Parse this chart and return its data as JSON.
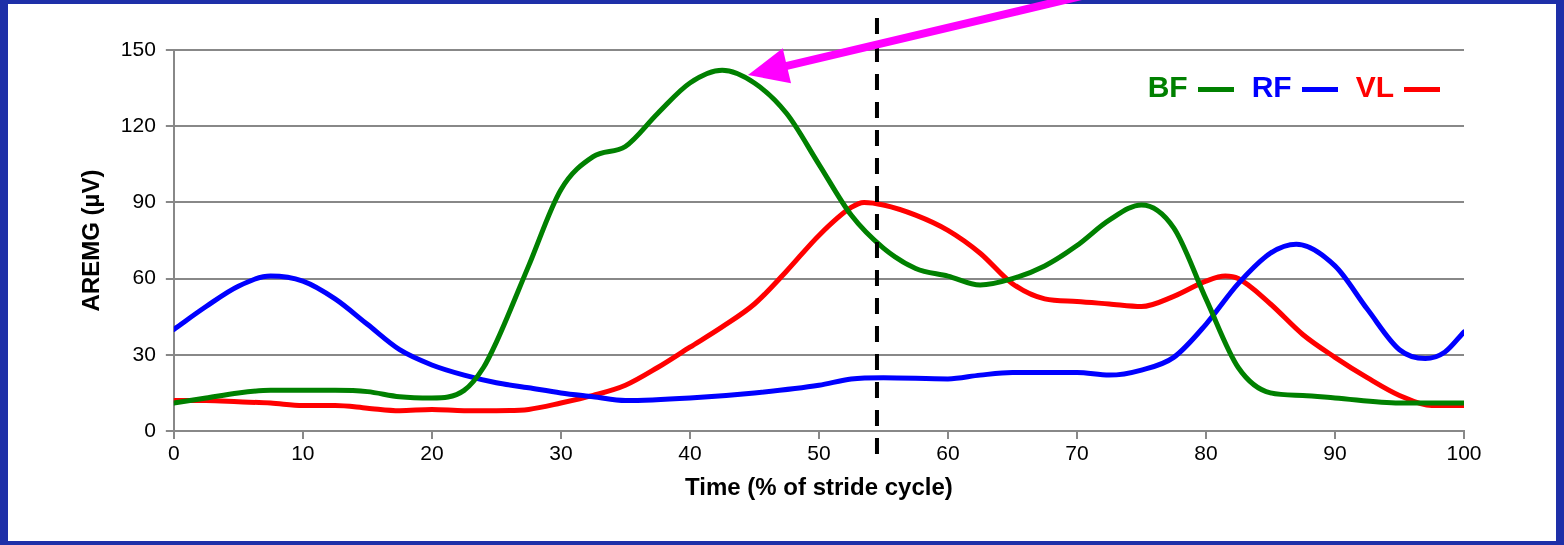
{
  "chart_data": {
    "type": "line",
    "xlabel": "Time (% of stride cycle)",
    "ylabel": "AREMG (µV)",
    "xlim": [
      0,
      100
    ],
    "xticks": [
      0,
      10,
      20,
      30,
      40,
      50,
      60,
      70,
      80,
      90,
      100
    ],
    "ylim": [
      0,
      150
    ],
    "yticks": [
      0,
      30,
      60,
      90,
      120,
      150
    ],
    "grid": "y",
    "legend": "top right",
    "marker": "none",
    "line_style": "solid",
    "series": [
      {
        "name": "BF",
        "color": "#008000",
        "x": [
          0,
          2.5,
          5,
          7.5,
          10,
          12.5,
          15,
          17.5,
          20,
          22.5,
          24,
          25,
          27.5,
          30,
          32.5,
          35,
          37.5,
          40,
          42.5,
          45,
          47.5,
          50,
          52.5,
          55,
          57.5,
          60,
          62.5,
          65,
          67.5,
          70,
          72.5,
          75,
          77.5,
          80,
          82.5,
          85,
          87.5,
          90,
          95,
          100
        ],
        "values": [
          11,
          13,
          15,
          16,
          16,
          16,
          15.5,
          13.5,
          13,
          16,
          25,
          35,
          65,
          95,
          108,
          112,
          125,
          137,
          142,
          137,
          125,
          105,
          85,
          72,
          64,
          61,
          57.5,
          60,
          65,
          73,
          83,
          89,
          80,
          52,
          25,
          15,
          14,
          13,
          11,
          11
        ]
      },
      {
        "name": "RF",
        "color": "#0000ff",
        "x": [
          0,
          2.5,
          5,
          7.5,
          10,
          12.5,
          15,
          17.5,
          20,
          22.5,
          25,
          27.5,
          30,
          32.5,
          35,
          40,
          45,
          50,
          52.5,
          55,
          60,
          62.5,
          65,
          67.5,
          70,
          72.5,
          75,
          77.5,
          80,
          82.5,
          85,
          87,
          90,
          92.5,
          95,
          97,
          98.5,
          100
        ],
        "values": [
          40,
          49,
          57,
          61,
          59,
          52,
          42,
          32,
          26,
          22,
          19,
          17,
          15,
          13.5,
          12,
          13,
          15,
          18,
          20.5,
          21,
          20.5,
          22,
          23,
          23,
          23,
          22,
          24,
          29,
          42,
          58,
          70,
          73.5,
          65,
          48,
          32,
          28.5,
          31,
          39
        ]
      },
      {
        "name": "VL",
        "color": "#ff0000",
        "x": [
          0,
          2.5,
          5,
          7.5,
          10,
          12.5,
          15,
          17.5,
          20,
          22.5,
          25,
          27.5,
          30,
          32.5,
          35,
          37.5,
          40,
          42.5,
          45,
          47.5,
          50,
          52.5,
          53.5,
          55,
          57.5,
          60,
          62.5,
          65,
          67.5,
          70,
          72.5,
          75,
          77.5,
          80,
          81.5,
          82.5,
          85,
          87.5,
          90,
          92.5,
          95,
          97.5,
          100
        ],
        "values": [
          12,
          12,
          11.5,
          11,
          10,
          10,
          9,
          8,
          8.5,
          8,
          8,
          8.5,
          11,
          14,
          18,
          25,
          33,
          41,
          50,
          63,
          77,
          88,
          90,
          89,
          85,
          79,
          70,
          58,
          52,
          51,
          50,
          49,
          53,
          59,
          61,
          60,
          50,
          38,
          29,
          21,
          14,
          10,
          10
        ]
      }
    ],
    "ref_lines": [
      {
        "axis": "x",
        "value": 54.5,
        "color": "#000000",
        "line_style": "dashed"
      }
    ]
  }
}
